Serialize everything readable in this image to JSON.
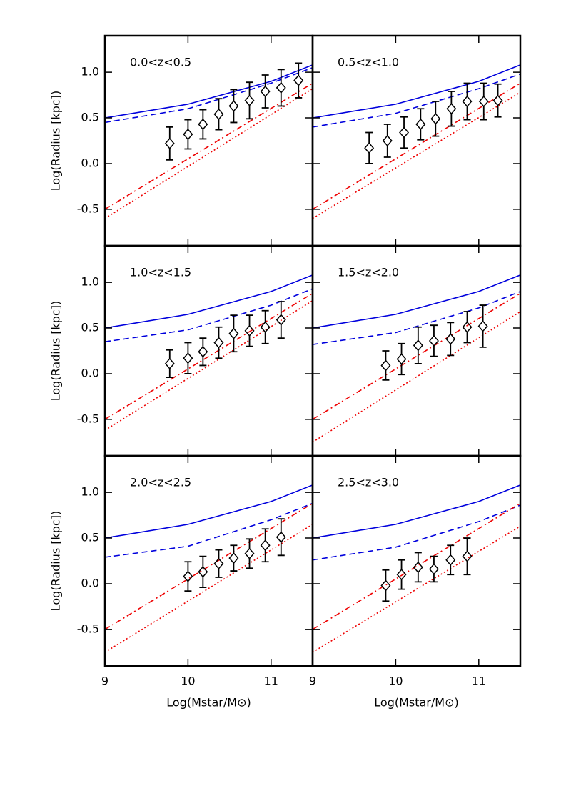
{
  "chart_data": [
    {
      "type": "line",
      "title": "0.0<z<0.5",
      "ylabel": "Log(Radius [kpc])",
      "show_xticklabels": false,
      "xlim": [
        9,
        11.5
      ],
      "ylim": [
        -0.9,
        1.4
      ],
      "xticks": [
        9,
        10,
        11
      ],
      "yticks": [
        -0.5,
        {
          "value": 0,
          "label": "0.0"
        },
        0.5,
        {
          "value": 1,
          "label": "1.0"
        }
      ],
      "series": [
        {
          "color": "#0000dd",
          "style": "solid",
          "x": [
            9,
            10,
            11,
            11.5
          ],
          "values": [
            0.5,
            0.65,
            0.9,
            1.08
          ]
        },
        {
          "color": "#0000dd",
          "style": "dashed",
          "x": [
            9,
            10,
            11,
            11.5
          ],
          "values": [
            0.45,
            0.6,
            0.88,
            1.05
          ]
        },
        {
          "color": "#ee0000",
          "style": "dashdot",
          "x": [
            9,
            11.5
          ],
          "values": [
            -0.5,
            0.88
          ]
        },
        {
          "color": "#ee0000",
          "style": "dotted",
          "x": [
            9,
            11.5
          ],
          "values": [
            -0.6,
            0.82
          ]
        },
        {
          "color": "#000000",
          "style": "diamond",
          "x": [
            9.78,
            10.0,
            10.18,
            10.37,
            10.55,
            10.74,
            10.93,
            11.12,
            11.33
          ],
          "values": [
            0.22,
            0.32,
            0.43,
            0.54,
            0.63,
            0.69,
            0.79,
            0.83,
            0.91
          ],
          "errors": [
            0.18,
            0.16,
            0.16,
            0.17,
            0.18,
            0.2,
            0.18,
            0.2,
            0.19
          ]
        }
      ]
    },
    {
      "type": "line",
      "title": "0.5<z<1.0",
      "show_xticklabels": false,
      "xlim": [
        9,
        11.5
      ],
      "ylim": [
        -0.9,
        1.4
      ],
      "xticks": [
        9,
        10,
        11
      ],
      "yticks": [
        -0.5,
        0,
        0.5,
        1
      ],
      "series": [
        {
          "color": "#0000dd",
          "style": "solid",
          "x": [
            9,
            10,
            11,
            11.5
          ],
          "values": [
            0.5,
            0.65,
            0.9,
            1.08
          ]
        },
        {
          "color": "#0000dd",
          "style": "dashed",
          "x": [
            9,
            10,
            11,
            11.5
          ],
          "values": [
            0.4,
            0.55,
            0.82,
            0.98
          ]
        },
        {
          "color": "#ee0000",
          "style": "dashdot",
          "x": [
            9,
            11.5
          ],
          "values": [
            -0.5,
            0.88
          ]
        },
        {
          "color": "#ee0000",
          "style": "dotted",
          "x": [
            9,
            11.5
          ],
          "values": [
            -0.6,
            0.78
          ]
        },
        {
          "color": "#000000",
          "style": "diamond",
          "x": [
            9.68,
            9.9,
            10.1,
            10.3,
            10.48,
            10.67,
            10.86,
            11.06,
            11.23
          ],
          "values": [
            0.17,
            0.25,
            0.34,
            0.43,
            0.49,
            0.6,
            0.68,
            0.68,
            0.69
          ],
          "errors": [
            0.17,
            0.18,
            0.17,
            0.17,
            0.19,
            0.19,
            0.2,
            0.2,
            0.18
          ]
        }
      ]
    },
    {
      "type": "line",
      "title": "1.0<z<1.5",
      "ylabel": "Log(Radius [kpc])",
      "show_xticklabels": false,
      "xlim": [
        9,
        11.5
      ],
      "ylim": [
        -0.9,
        1.4
      ],
      "xticks": [
        9,
        10,
        11
      ],
      "yticks": [
        -0.5,
        {
          "value": 0,
          "label": "0.0"
        },
        0.5,
        {
          "value": 1,
          "label": "1.0"
        }
      ],
      "series": [
        {
          "color": "#0000dd",
          "style": "solid",
          "x": [
            9,
            10,
            11,
            11.5
          ],
          "values": [
            0.5,
            0.65,
            0.9,
            1.08
          ]
        },
        {
          "color": "#0000dd",
          "style": "dashed",
          "x": [
            9,
            10,
            11,
            11.5
          ],
          "values": [
            0.35,
            0.48,
            0.75,
            0.93
          ]
        },
        {
          "color": "#ee0000",
          "style": "dashdot",
          "x": [
            9,
            11.5
          ],
          "values": [
            -0.5,
            0.88
          ]
        },
        {
          "color": "#ee0000",
          "style": "dotted",
          "x": [
            9,
            11.5
          ],
          "values": [
            -0.62,
            0.8
          ]
        },
        {
          "color": "#000000",
          "style": "diamond",
          "x": [
            9.78,
            10.0,
            10.18,
            10.37,
            10.55,
            10.74,
            10.93,
            11.12
          ],
          "values": [
            0.11,
            0.17,
            0.24,
            0.34,
            0.44,
            0.47,
            0.51,
            0.59
          ],
          "errors": [
            0.15,
            0.17,
            0.15,
            0.17,
            0.2,
            0.17,
            0.18,
            0.2
          ]
        }
      ]
    },
    {
      "type": "line",
      "title": "1.5<z<2.0",
      "show_xticklabels": false,
      "xlim": [
        9,
        11.5
      ],
      "ylim": [
        -0.9,
        1.4
      ],
      "xticks": [
        9,
        10,
        11
      ],
      "yticks": [
        -0.5,
        0,
        0.5,
        1
      ],
      "series": [
        {
          "color": "#0000dd",
          "style": "solid",
          "x": [
            9,
            10,
            11,
            11.5
          ],
          "values": [
            0.5,
            0.65,
            0.9,
            1.08
          ]
        },
        {
          "color": "#0000dd",
          "style": "dashed",
          "x": [
            9,
            10,
            11,
            11.5
          ],
          "values": [
            0.32,
            0.45,
            0.72,
            0.9
          ]
        },
        {
          "color": "#ee0000",
          "style": "dashdot",
          "x": [
            9,
            11.5
          ],
          "values": [
            -0.5,
            0.88
          ]
        },
        {
          "color": "#ee0000",
          "style": "dotted",
          "x": [
            9,
            11.5
          ],
          "values": [
            -0.75,
            0.68
          ]
        },
        {
          "color": "#000000",
          "style": "diamond",
          "x": [
            9.88,
            10.07,
            10.27,
            10.46,
            10.66,
            10.86,
            11.05
          ],
          "values": [
            0.09,
            0.16,
            0.31,
            0.36,
            0.38,
            0.51,
            0.52
          ],
          "errors": [
            0.16,
            0.17,
            0.2,
            0.17,
            0.18,
            0.17,
            0.23
          ]
        }
      ]
    },
    {
      "type": "line",
      "title": "2.0<z<2.5",
      "ylabel": "Log(Radius [kpc])",
      "xlabel": "Log(Mstar/M⊙)",
      "show_xticklabels": true,
      "xlim": [
        9,
        11.5
      ],
      "ylim": [
        -0.9,
        1.4
      ],
      "xticks": [
        9,
        10,
        11
      ],
      "yticks": [
        -0.5,
        {
          "value": 0,
          "label": "0.0"
        },
        0.5,
        {
          "value": 1,
          "label": "1.0"
        }
      ],
      "series": [
        {
          "color": "#0000dd",
          "style": "solid",
          "x": [
            9,
            10,
            11,
            11.5
          ],
          "values": [
            0.5,
            0.65,
            0.9,
            1.08
          ]
        },
        {
          "color": "#0000dd",
          "style": "dashed",
          "x": [
            9,
            10,
            11,
            11.5
          ],
          "values": [
            0.29,
            0.41,
            0.7,
            0.88
          ]
        },
        {
          "color": "#ee0000",
          "style": "dashdot",
          "x": [
            9,
            11.5
          ],
          "values": [
            -0.5,
            0.88
          ]
        },
        {
          "color": "#ee0000",
          "style": "dotted",
          "x": [
            9,
            11.5
          ],
          "values": [
            -0.75,
            0.65
          ]
        },
        {
          "color": "#000000",
          "style": "diamond",
          "x": [
            10.0,
            10.18,
            10.37,
            10.55,
            10.74,
            10.93,
            11.12
          ],
          "values": [
            0.08,
            0.13,
            0.22,
            0.28,
            0.33,
            0.42,
            0.51
          ],
          "errors": [
            0.16,
            0.17,
            0.15,
            0.14,
            0.16,
            0.18,
            0.2
          ]
        }
      ]
    },
    {
      "type": "line",
      "title": "2.5<z<3.0",
      "xlabel": "Log(Mstar/M⊙)",
      "show_xticklabels": true,
      "xlim": [
        9,
        11.5
      ],
      "ylim": [
        -0.9,
        1.4
      ],
      "xticks": [
        9,
        10,
        11
      ],
      "yticks": [
        -0.5,
        0,
        0.5,
        1
      ],
      "series": [
        {
          "color": "#0000dd",
          "style": "solid",
          "x": [
            9,
            10,
            11,
            11.5
          ],
          "values": [
            0.5,
            0.65,
            0.9,
            1.08
          ]
        },
        {
          "color": "#0000dd",
          "style": "dashed",
          "x": [
            9,
            10,
            11,
            11.5
          ],
          "values": [
            0.26,
            0.4,
            0.68,
            0.86
          ]
        },
        {
          "color": "#ee0000",
          "style": "dashdot",
          "x": [
            9,
            11.5
          ],
          "values": [
            -0.5,
            0.88
          ]
        },
        {
          "color": "#ee0000",
          "style": "dotted",
          "x": [
            9,
            11.5
          ],
          "values": [
            -0.75,
            0.63
          ]
        },
        {
          "color": "#000000",
          "style": "diamond",
          "x": [
            9.88,
            10.07,
            10.27,
            10.46,
            10.66,
            10.86
          ],
          "values": [
            -0.02,
            0.1,
            0.18,
            0.16,
            0.26,
            0.3
          ],
          "errors": [
            0.17,
            0.16,
            0.16,
            0.14,
            0.16,
            0.2
          ]
        }
      ]
    }
  ]
}
